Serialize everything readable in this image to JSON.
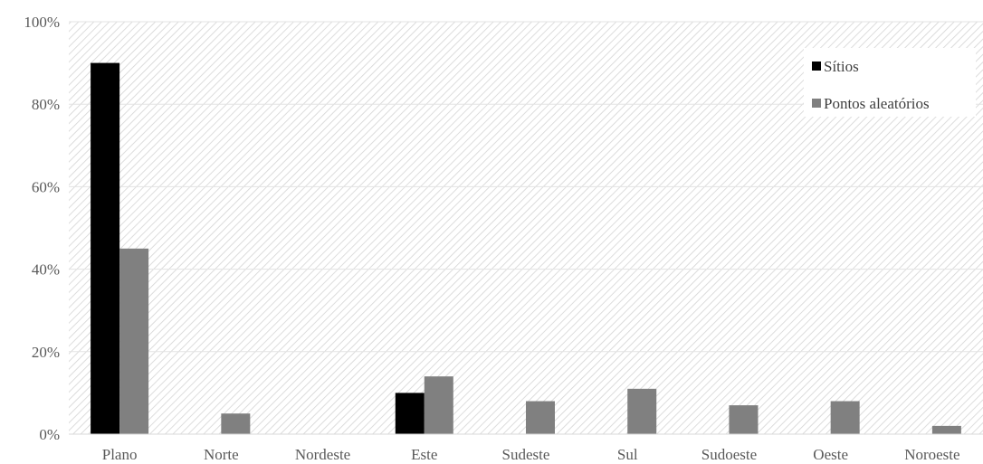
{
  "chart_data": {
    "type": "bar",
    "categories": [
      "Plano",
      "Norte",
      "Nordeste",
      "Este",
      "Sudeste",
      "Sul",
      "Sudoeste",
      "Oeste",
      "Noroeste"
    ],
    "series": [
      {
        "name": "Sítios",
        "color": "#000000",
        "values": [
          90,
          0,
          0,
          10,
          0,
          0,
          0,
          0,
          0
        ]
      },
      {
        "name": "Pontos aleatórios",
        "color": "#808080",
        "values": [
          45,
          5,
          0,
          14,
          8,
          11,
          7,
          8,
          2
        ]
      }
    ],
    "ylim": [
      0,
      100
    ],
    "yticks": [
      "0%",
      "20%",
      "40%",
      "60%",
      "80%",
      "100%"
    ],
    "ytick_values": [
      0,
      20,
      40,
      60,
      80,
      100
    ],
    "grid": true,
    "background": "diagonal-hatch",
    "legend_position": "top-right"
  }
}
